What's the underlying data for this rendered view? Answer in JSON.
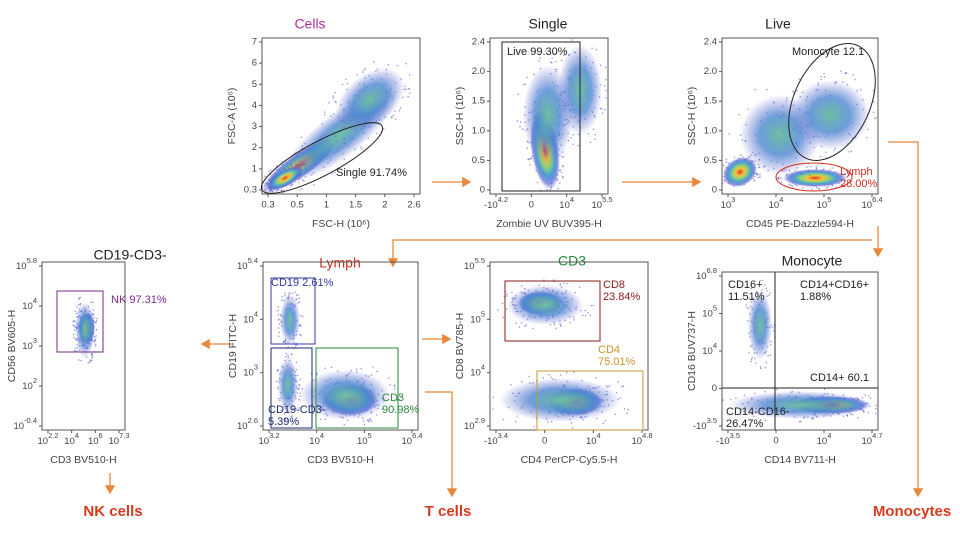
{
  "panels": [
    {
      "title": "Cells",
      "title_color": "#b0309a",
      "y_label": "FSC-A (10⁶)",
      "x_label": "FSC-H (10⁶)",
      "x_ticks": [
        "0.3",
        "0.5",
        "1",
        "1.5",
        "2",
        "2.6"
      ],
      "y_ticks": [
        "0.3",
        "1",
        "2",
        "3",
        "4",
        "5",
        "6",
        "7"
      ],
      "gates": [
        {
          "lines": [
            "Single 91.74%"
          ],
          "color": "#222222"
        }
      ]
    },
    {
      "title": "Single",
      "title_color": "#222222",
      "y_label": "SSC-H (10⁶)",
      "x_label": "Zombie UV BUV395-H",
      "x_ticks": [
        {
          "base": "-10",
          "exp": "4.2"
        },
        "0",
        {
          "base": "10",
          "exp": "4"
        },
        {
          "base": "10",
          "exp": "5.5"
        }
      ],
      "y_ticks": [
        "0",
        "0.5",
        "1.0",
        "1.5",
        "2.0",
        "2.4"
      ],
      "gates": [
        {
          "lines": [
            "Live 99.30%"
          ],
          "color": "#222222"
        }
      ]
    },
    {
      "title": "Live",
      "title_color": "#222222",
      "y_label": "SSC-H (10⁶)",
      "x_label": "CD45 PE-Dazzle594-H",
      "x_ticks": [
        {
          "base": "10",
          "exp": "3"
        },
        {
          "base": "10",
          "exp": "4"
        },
        {
          "base": "10",
          "exp": "5"
        },
        {
          "base": "10",
          "exp": "6.4"
        }
      ],
      "y_ticks": [
        "0",
        "0.5",
        "1.0",
        "1.5",
        "2.0",
        "2.4"
      ],
      "gates": [
        {
          "lines": [
            "Monocyte 12.1"
          ],
          "color": "#222222"
        },
        {
          "lines": [
            "Lymph",
            "28.00%"
          ],
          "color": "#d03020"
        }
      ]
    },
    {
      "title": "CD19-CD3-",
      "title_color": "#222222",
      "y_label": "CD56 BV605-H",
      "x_label": "CD3 BV510-H",
      "x_ticks": [
        {
          "base": "10",
          "exp": "2.2"
        },
        {
          "base": "10",
          "exp": "4"
        },
        {
          "base": "10",
          "exp": "6"
        },
        {
          "base": "10",
          "exp": "7.3"
        }
      ],
      "y_ticks": [
        {
          "base": "10",
          "exp": "-0.4"
        },
        {
          "base": "10",
          "exp": "2"
        },
        {
          "base": "10",
          "exp": "3"
        },
        {
          "base": "10",
          "exp": "4"
        },
        {
          "base": "10",
          "exp": "5.8"
        }
      ],
      "gates": [
        {
          "lines": [
            "NK 97.31%"
          ],
          "color": "#7a2a8a"
        }
      ]
    },
    {
      "title": "Lymph",
      "title_color": "#d03020",
      "y_label": "CD19 FITC-H",
      "x_label": "CD3 BV510-H",
      "x_ticks": [
        {
          "base": "10",
          "exp": "3.2"
        },
        {
          "base": "10",
          "exp": "4"
        },
        {
          "base": "10",
          "exp": "5"
        },
        {
          "base": "10",
          "exp": "6.4"
        }
      ],
      "y_ticks": [
        {
          "base": "10",
          "exp": "2.6"
        },
        {
          "base": "10",
          "exp": "3"
        },
        {
          "base": "10",
          "exp": "4"
        },
        {
          "base": "10",
          "exp": "5.4"
        }
      ],
      "gates": [
        {
          "lines": [
            "CD19  2.61%"
          ],
          "color": "#3a3aa0"
        },
        {
          "lines": [
            "CD19-CD3-",
            "5.39%"
          ],
          "color": "#1e2a6a"
        },
        {
          "lines": [
            "CD3",
            "90.98%"
          ],
          "color": "#2a8a3a"
        }
      ]
    },
    {
      "title": "CD3",
      "title_color": "#2a8a3a",
      "y_label": "CD8 BV785-H",
      "x_label": "CD4 PerCP-Cy5.5-H",
      "x_ticks": [
        {
          "base": "-10",
          "exp": "3.4"
        },
        "0",
        {
          "base": "10",
          "exp": "4"
        },
        {
          "base": "10",
          "exp": "4.8"
        }
      ],
      "y_ticks": [
        {
          "base": "10",
          "exp": "2.9"
        },
        {
          "base": "10",
          "exp": "4"
        },
        {
          "base": "10",
          "exp": "5"
        },
        {
          "base": "10",
          "exp": "5.5"
        }
      ],
      "gates": [
        {
          "lines": [
            "CD8",
            "23.84%"
          ],
          "color": "#8b1a1a"
        },
        {
          "lines": [
            "CD4",
            "75.01%"
          ],
          "color": "#c8952a"
        }
      ]
    },
    {
      "title": "Monocyte",
      "title_color": "#222222",
      "y_label": "CD16 BUV737-H",
      "x_label": "CD14 BV711-H",
      "x_ticks": [
        {
          "base": "-10",
          "exp": "3.5"
        },
        "0",
        {
          "base": "10",
          "exp": "4"
        },
        {
          "base": "10",
          "exp": "4.7"
        }
      ],
      "y_ticks": [
        {
          "base": "-10",
          "exp": "3.5"
        },
        "0",
        {
          "base": "10",
          "exp": "4"
        },
        {
          "base": "10",
          "exp": "5"
        },
        {
          "base": "10",
          "exp": "6.8"
        }
      ],
      "gates": [
        {
          "lines": [
            "CD16+",
            "11.51%"
          ],
          "color": "#222222"
        },
        {
          "lines": [
            "CD14+CD16+",
            "1.88%"
          ],
          "color": "#222222"
        },
        {
          "lines": [
            "CD14+  60.1"
          ],
          "color": "#222222"
        },
        {
          "lines": [
            "CD14-CD16-",
            "26.47%"
          ],
          "color": "#222222"
        }
      ]
    }
  ],
  "outputs": [
    "NK cells",
    "T cells",
    "Monocytes"
  ]
}
